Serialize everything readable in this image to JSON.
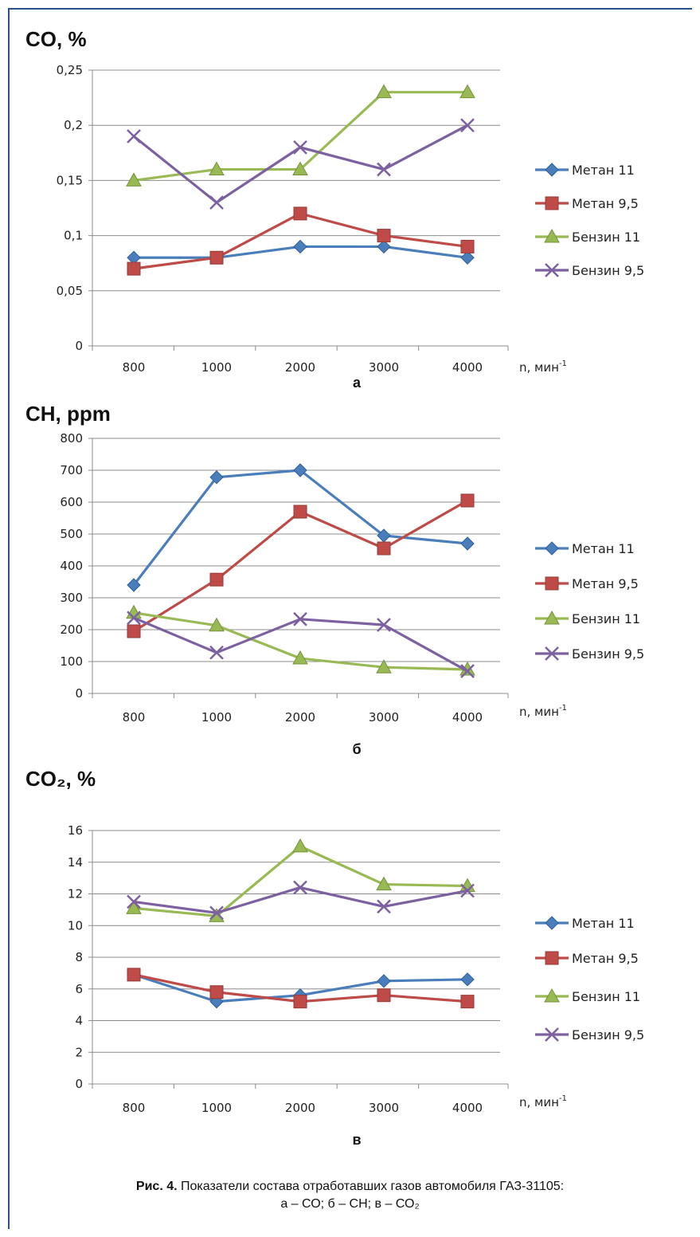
{
  "caption": {
    "prefix": "Рис. 4.",
    "line1": "Показатели состава отработавших газов автомобиля ГАЗ-31105:",
    "line2": "а – СО; б – СН; в – СО₂"
  },
  "colors": {
    "Метан 11": "#4a7ebb",
    "Метан 9,5": "#be4b48",
    "Бензин 11": "#98b954",
    "Бензин 9,5": "#7d60a0"
  },
  "chart_data": [
    {
      "type": "line",
      "panel": "а",
      "title": "CO, %",
      "xlabel": "n, мин",
      "xlabel_sup": "-1",
      "categories": [
        "800",
        "1000",
        "2000",
        "3000",
        "4000"
      ],
      "ylim": [
        0,
        0.25
      ],
      "yticks": [
        0,
        0.05,
        0.1,
        0.15,
        0.2,
        0.25
      ],
      "ytick_labels": [
        "0",
        "0,05",
        "0,1",
        "0,15",
        "0,2",
        "0,25"
      ],
      "grid": true,
      "legend": "right",
      "series": [
        {
          "name": "Метан 11",
          "values": [
            0.08,
            0.08,
            0.09,
            0.09,
            0.08
          ]
        },
        {
          "name": "Метан 9,5",
          "values": [
            0.07,
            0.08,
            0.12,
            0.1,
            0.09
          ]
        },
        {
          "name": "Бензин 11",
          "values": [
            0.15,
            0.16,
            0.16,
            0.23,
            0.23
          ]
        },
        {
          "name": "Бензин 9,5",
          "values": [
            0.19,
            0.13,
            0.18,
            0.16,
            0.2
          ]
        }
      ]
    },
    {
      "type": "line",
      "panel": "б",
      "title": "CH, ppm",
      "xlabel": "n, мин",
      "xlabel_sup": "-1",
      "categories": [
        "800",
        "1000",
        "2000",
        "3000",
        "4000"
      ],
      "ylim": [
        0,
        800
      ],
      "yticks": [
        0,
        100,
        200,
        300,
        400,
        500,
        600,
        700,
        800
      ],
      "ytick_labels": [
        "0",
        "100",
        "200",
        "300",
        "400",
        "500",
        "600",
        "700",
        "800"
      ],
      "grid": true,
      "legend": "right",
      "series": [
        {
          "name": "Метан 11",
          "values": [
            340,
            678,
            700,
            495,
            470
          ]
        },
        {
          "name": "Метан 9,5",
          "values": [
            195,
            357,
            570,
            455,
            605
          ]
        },
        {
          "name": "Бензин 11",
          "values": [
            253,
            213,
            110,
            82,
            75
          ]
        },
        {
          "name": "Бензин 9,5",
          "values": [
            237,
            128,
            233,
            215,
            70
          ]
        }
      ]
    },
    {
      "type": "line",
      "panel": "в",
      "title": "CO₂, %",
      "xlabel": "n, мин",
      "xlabel_sup": "-1",
      "categories": [
        "800",
        "1000",
        "2000",
        "3000",
        "4000"
      ],
      "ylim": [
        0,
        16
      ],
      "yticks": [
        0,
        2,
        4,
        6,
        8,
        10,
        12,
        14,
        16
      ],
      "ytick_labels": [
        "0",
        "2",
        "4",
        "6",
        "8",
        "10",
        "12",
        "14",
        "16"
      ],
      "grid": true,
      "legend": "right",
      "series": [
        {
          "name": "Метан 11",
          "values": [
            6.9,
            5.2,
            5.6,
            6.5,
            6.6
          ]
        },
        {
          "name": "Метан 9,5",
          "values": [
            6.9,
            5.8,
            5.2,
            5.6,
            5.2
          ]
        },
        {
          "name": "Бензин 11",
          "values": [
            11.1,
            10.6,
            15.0,
            12.6,
            12.5
          ]
        },
        {
          "name": "Бензин 9,5",
          "values": [
            11.5,
            10.8,
            12.4,
            11.2,
            12.2
          ]
        }
      ]
    }
  ]
}
